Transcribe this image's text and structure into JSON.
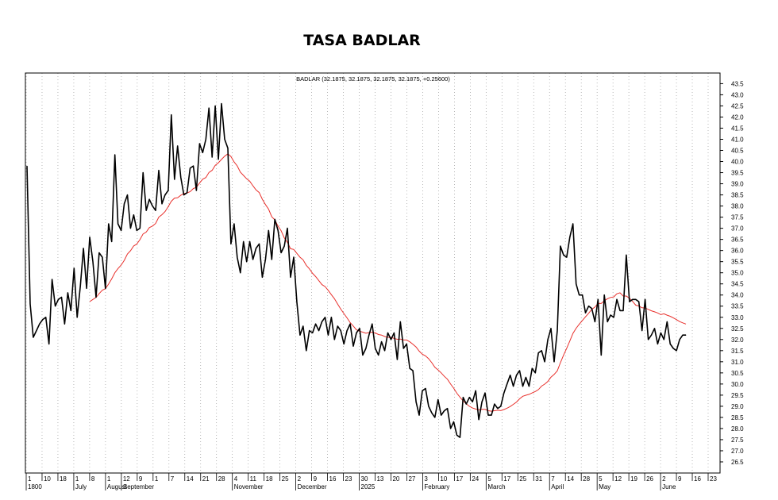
{
  "chart_data": {
    "type": "line",
    "title": "TASA BADLAR",
    "legend_label": "BADLAR (32.1875, 32.1875, 32.1875, 32.1875, +0.25600)",
    "ylim": [
      26,
      43.8
    ],
    "yticks": [
      26.5,
      27.0,
      27.5,
      28.0,
      28.5,
      29.0,
      29.5,
      30.0,
      30.5,
      31.0,
      31.5,
      32.0,
      32.5,
      33.0,
      33.5,
      34.0,
      34.5,
      35.0,
      35.5,
      36.0,
      36.5,
      37.0,
      37.5,
      38.0,
      38.5,
      39.0,
      39.5,
      40.0,
      40.5,
      41.0,
      41.5,
      42.0,
      42.5,
      43.0,
      43.5
    ],
    "x_tick_labels": [
      "1",
      "10",
      "18",
      "1",
      "8",
      "1",
      "12",
      "9",
      "1",
      "7",
      "14",
      "21",
      "28",
      "4",
      "11",
      "18",
      "25",
      "2",
      "9",
      "16",
      "23",
      "30",
      "13",
      "20",
      "27",
      "3",
      "10",
      "17",
      "24",
      "5",
      "17",
      "25",
      "31",
      "7",
      "14",
      "28",
      "5",
      "12",
      "19",
      "26",
      "2",
      "9",
      "16",
      "23"
    ],
    "x_month_labels": [
      "1800",
      "July",
      "August",
      "September",
      "November",
      "December",
      "2025",
      "February",
      "March",
      "April",
      "May",
      "June"
    ],
    "grid": true,
    "series": [
      {
        "name": "BADLAR",
        "color": "#000000",
        "values": [
          39.8,
          33.6,
          32.1,
          32.4,
          32.7,
          32.9,
          33.0,
          31.8,
          34.7,
          33.5,
          33.8,
          33.9,
          32.7,
          34.1,
          33.3,
          35.2,
          33.0,
          34.4,
          36.1,
          34.3,
          36.6,
          35.5,
          33.9,
          35.9,
          35.7,
          34.3,
          37.2,
          36.4,
          40.3,
          37.2,
          36.9,
          38.1,
          38.5,
          37.0,
          37.6,
          36.9,
          37.0,
          39.5,
          37.8,
          38.3,
          38.0,
          37.8,
          39.6,
          38.1,
          38.5,
          38.7,
          42.1,
          39.2,
          40.7,
          39.3,
          38.5,
          38.6,
          39.7,
          39.8,
          38.7,
          40.8,
          40.4,
          41.0,
          42.4,
          40.2,
          42.5,
          40.1,
          42.6,
          41.0,
          40.6,
          36.3,
          37.2,
          35.7,
          35.0,
          36.4,
          35.5,
          36.4,
          35.6,
          36.1,
          36.3,
          34.8,
          35.6,
          36.9,
          35.6,
          37.4,
          36.9,
          35.9,
          36.2,
          37.0,
          34.8,
          35.7,
          33.7,
          32.2,
          32.6,
          31.5,
          32.4,
          32.3,
          32.7,
          32.4,
          32.8,
          33.0,
          32.2,
          33.0,
          32.0,
          32.6,
          32.4,
          31.8,
          32.4,
          32.7,
          31.7,
          32.3,
          32.5,
          31.3,
          31.6,
          32.2,
          32.7,
          31.6,
          31.3,
          31.9,
          31.5,
          32.3,
          32.0,
          32.3,
          31.1,
          32.8,
          31.6,
          31.8,
          30.7,
          30.6,
          29.2,
          28.6,
          29.7,
          29.8,
          29.0,
          28.7,
          28.5,
          29.3,
          28.6,
          28.8,
          28.9,
          28.0,
          28.3,
          27.7,
          27.6,
          29.4,
          29.1,
          29.4,
          29.2,
          29.7,
          28.4,
          29.2,
          29.6,
          28.6,
          28.6,
          29.1,
          28.9,
          29.0,
          29.6,
          30.0,
          30.4,
          29.9,
          30.4,
          30.6,
          29.9,
          30.3,
          29.9,
          30.7,
          30.5,
          31.4,
          31.5,
          31.0,
          32.0,
          32.5,
          31.0,
          32.4,
          36.2,
          35.8,
          35.7,
          36.6,
          37.2,
          34.5,
          34.0,
          34.0,
          33.2,
          33.5,
          33.4,
          32.8,
          33.8,
          31.3,
          34.0,
          32.8,
          33.1,
          33.0,
          33.8,
          33.3,
          33.3,
          35.8,
          33.7,
          33.8,
          33.8,
          33.7,
          32.4,
          33.8,
          32.0,
          32.2,
          32.5,
          31.8,
          32.3,
          32.0,
          32.8,
          31.8,
          31.6,
          31.5,
          32.0,
          32.2,
          32.2
        ]
      },
      {
        "name": "Moving Average",
        "color": "#e8302c",
        "values": []
      }
    ]
  }
}
